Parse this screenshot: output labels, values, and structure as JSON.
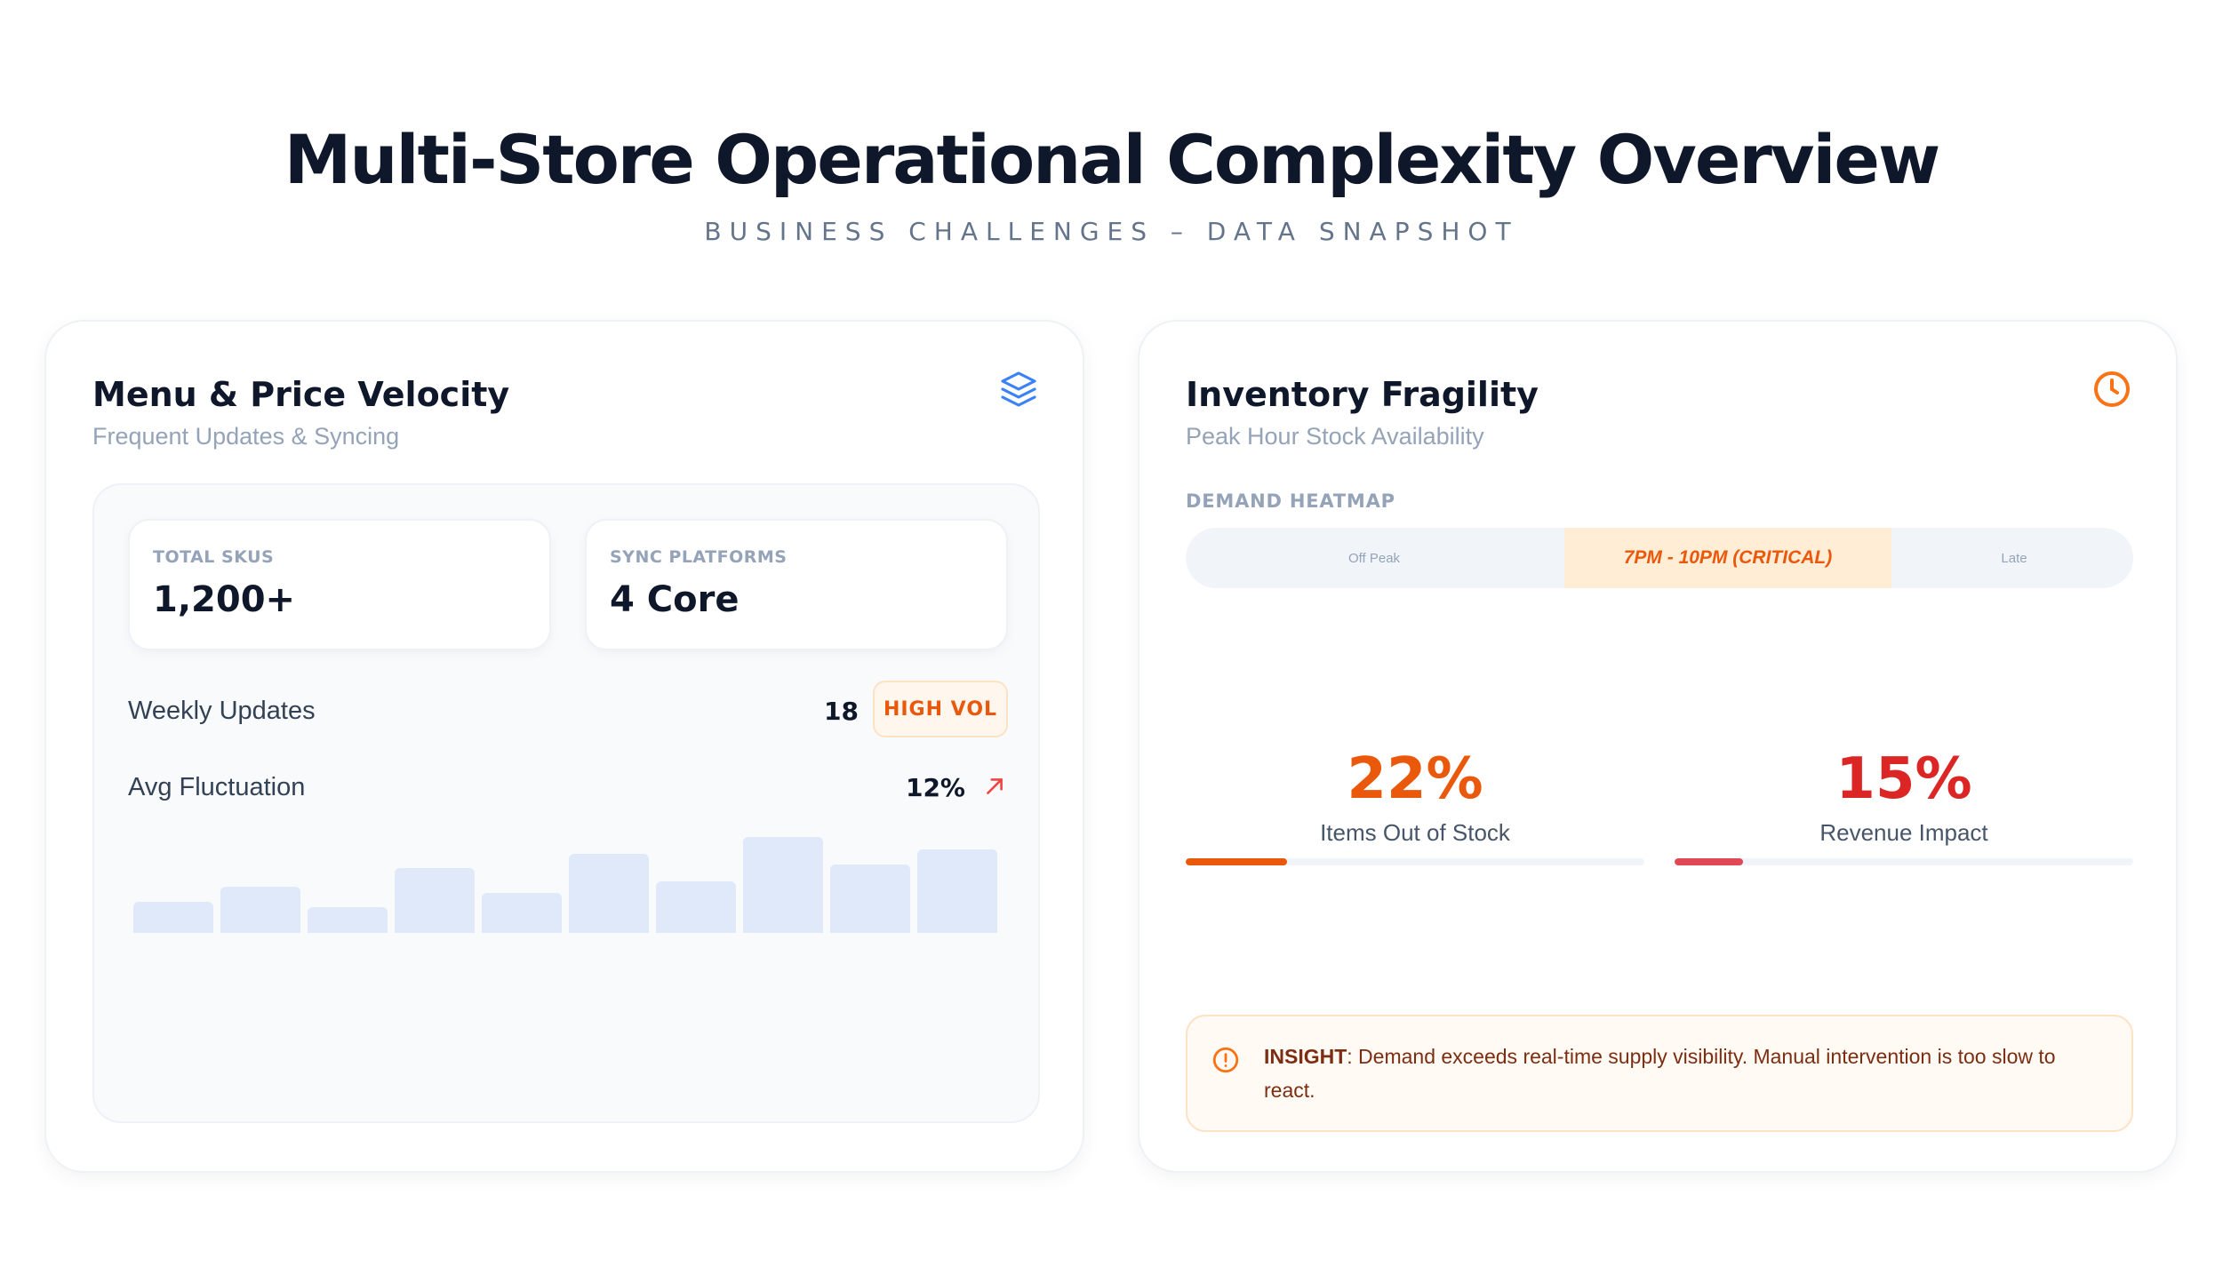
{
  "header": {
    "title": "Multi-Store Operational Complexity Overview",
    "subtitle": "BUSINESS CHALLENGES – DATA SNAPSHOT"
  },
  "menu_card": {
    "title": "Menu & Price Velocity",
    "subtitle": "Frequent Updates & Syncing",
    "icon": "layers-icon",
    "stats": [
      {
        "label": "TOTAL SKUS",
        "value": "1,200+"
      },
      {
        "label": "SYNC PLATFORMS",
        "value": "4 Core"
      }
    ],
    "weekly_updates": {
      "label": "Weekly Updates",
      "value": "18",
      "badge": "HIGH VOL"
    },
    "avg_fluctuation": {
      "label": "Avg Fluctuation",
      "value": "12%",
      "trend_icon": "arrow-up-right-icon"
    },
    "sparkline_levels": [
      0.32,
      0.48,
      0.27,
      0.68,
      0.42,
      0.82,
      0.54,
      1.0,
      0.71,
      0.87
    ]
  },
  "inventory_card": {
    "title": "Inventory Fragility",
    "subtitle": "Peak Hour Stock Availability",
    "icon": "clock-icon",
    "heatmap": {
      "label": "DEMAND HEATMAP",
      "segments": [
        "Off Peak",
        "7PM - 10PM (CRITICAL)",
        "Late"
      ]
    },
    "metrics": [
      {
        "value": "22%",
        "label": "Items Out of Stock",
        "fill": 0.22,
        "color": "#ea580c"
      },
      {
        "value": "15%",
        "label": "Revenue Impact",
        "fill": 0.15,
        "color": "#dc2626"
      }
    ],
    "insight": {
      "label": "INSIGHT",
      "text": ": Demand exceeds real-time supply visibility. Manual intervention is too slow to react."
    }
  }
}
